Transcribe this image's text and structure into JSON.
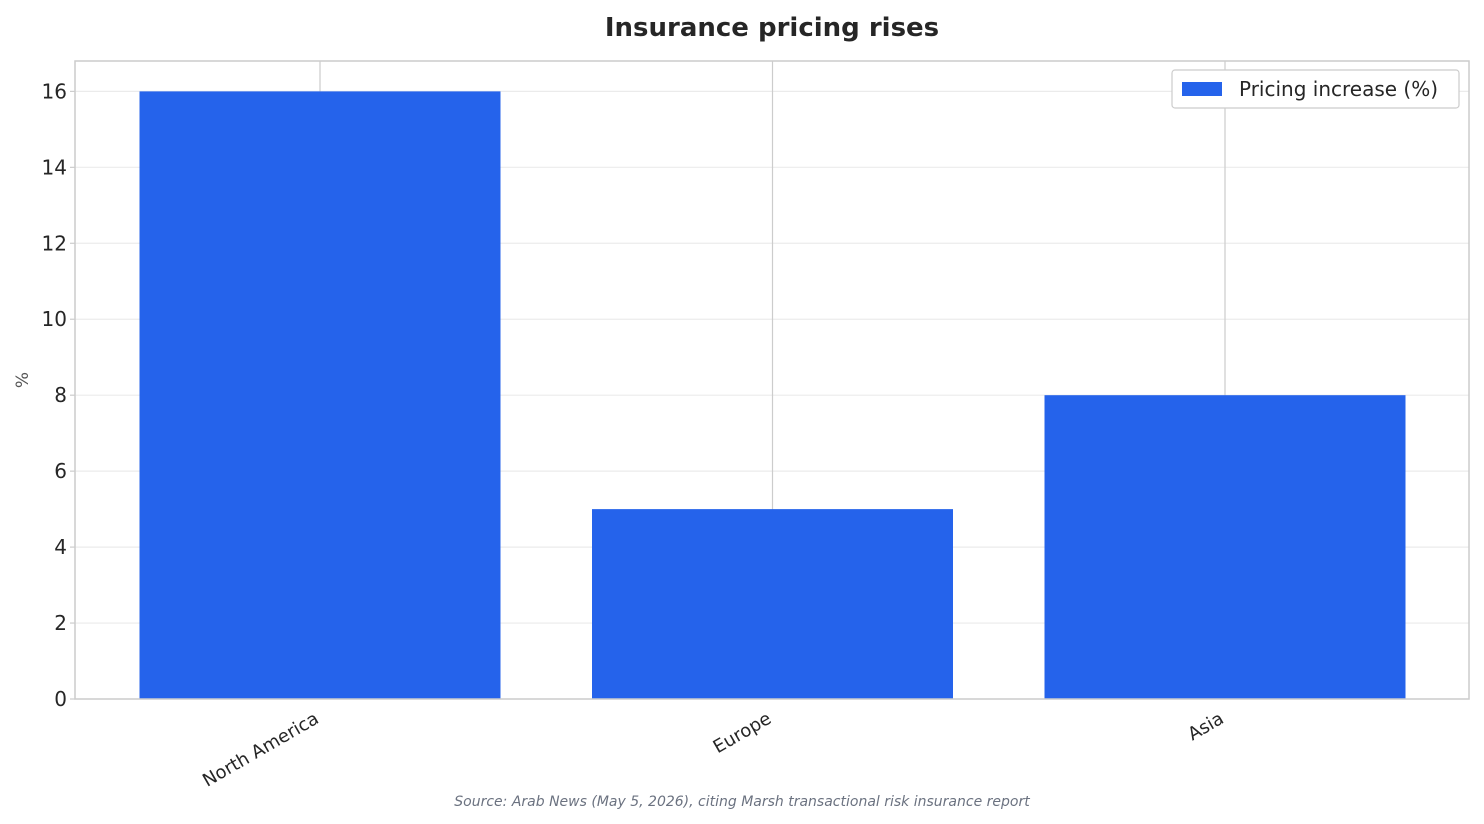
{
  "chart_data": {
    "type": "bar",
    "title": "Insurance pricing rises",
    "xlabel": "",
    "ylabel": "%",
    "categories": [
      "North America",
      "Europe",
      "Asia"
    ],
    "series": [
      {
        "name": "Pricing increase (%)",
        "values": [
          16,
          5,
          8
        ],
        "color": "#2563eb"
      }
    ],
    "ylim": [
      0,
      16.8
    ],
    "yticks": [
      0,
      2,
      4,
      6,
      8,
      10,
      12,
      14,
      16
    ],
    "grid": true,
    "legend": "top-right",
    "source": "Source: Arab News (May 5, 2026), citing Marsh transactional risk insurance report"
  }
}
